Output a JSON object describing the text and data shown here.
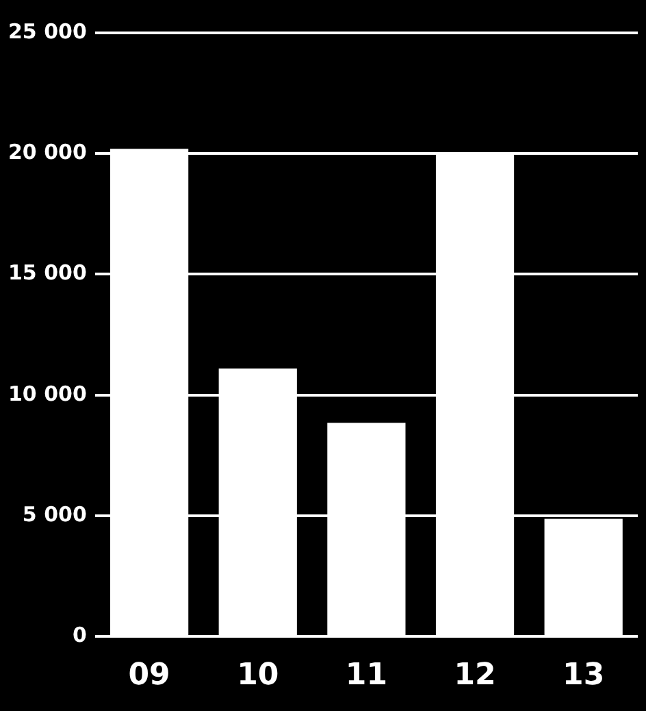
{
  "chart_data": {
    "type": "bar",
    "categories": [
      "09",
      "10",
      "11",
      "12",
      "13"
    ],
    "values": [
      20200,
      11100,
      8850,
      19950,
      4870
    ],
    "color": "#ffffff",
    "ylim": [
      0,
      25000
    ],
    "yticks": [
      {
        "value": 0,
        "label": "0"
      },
      {
        "value": 5000,
        "label": "5 000"
      },
      {
        "value": 10000,
        "label": "10 000"
      },
      {
        "value": 15000,
        "label": "15 000"
      },
      {
        "value": 20000,
        "label": "20 000"
      },
      {
        "value": 25000,
        "label": "25 000"
      }
    ],
    "grid": "y",
    "legend": false
  }
}
